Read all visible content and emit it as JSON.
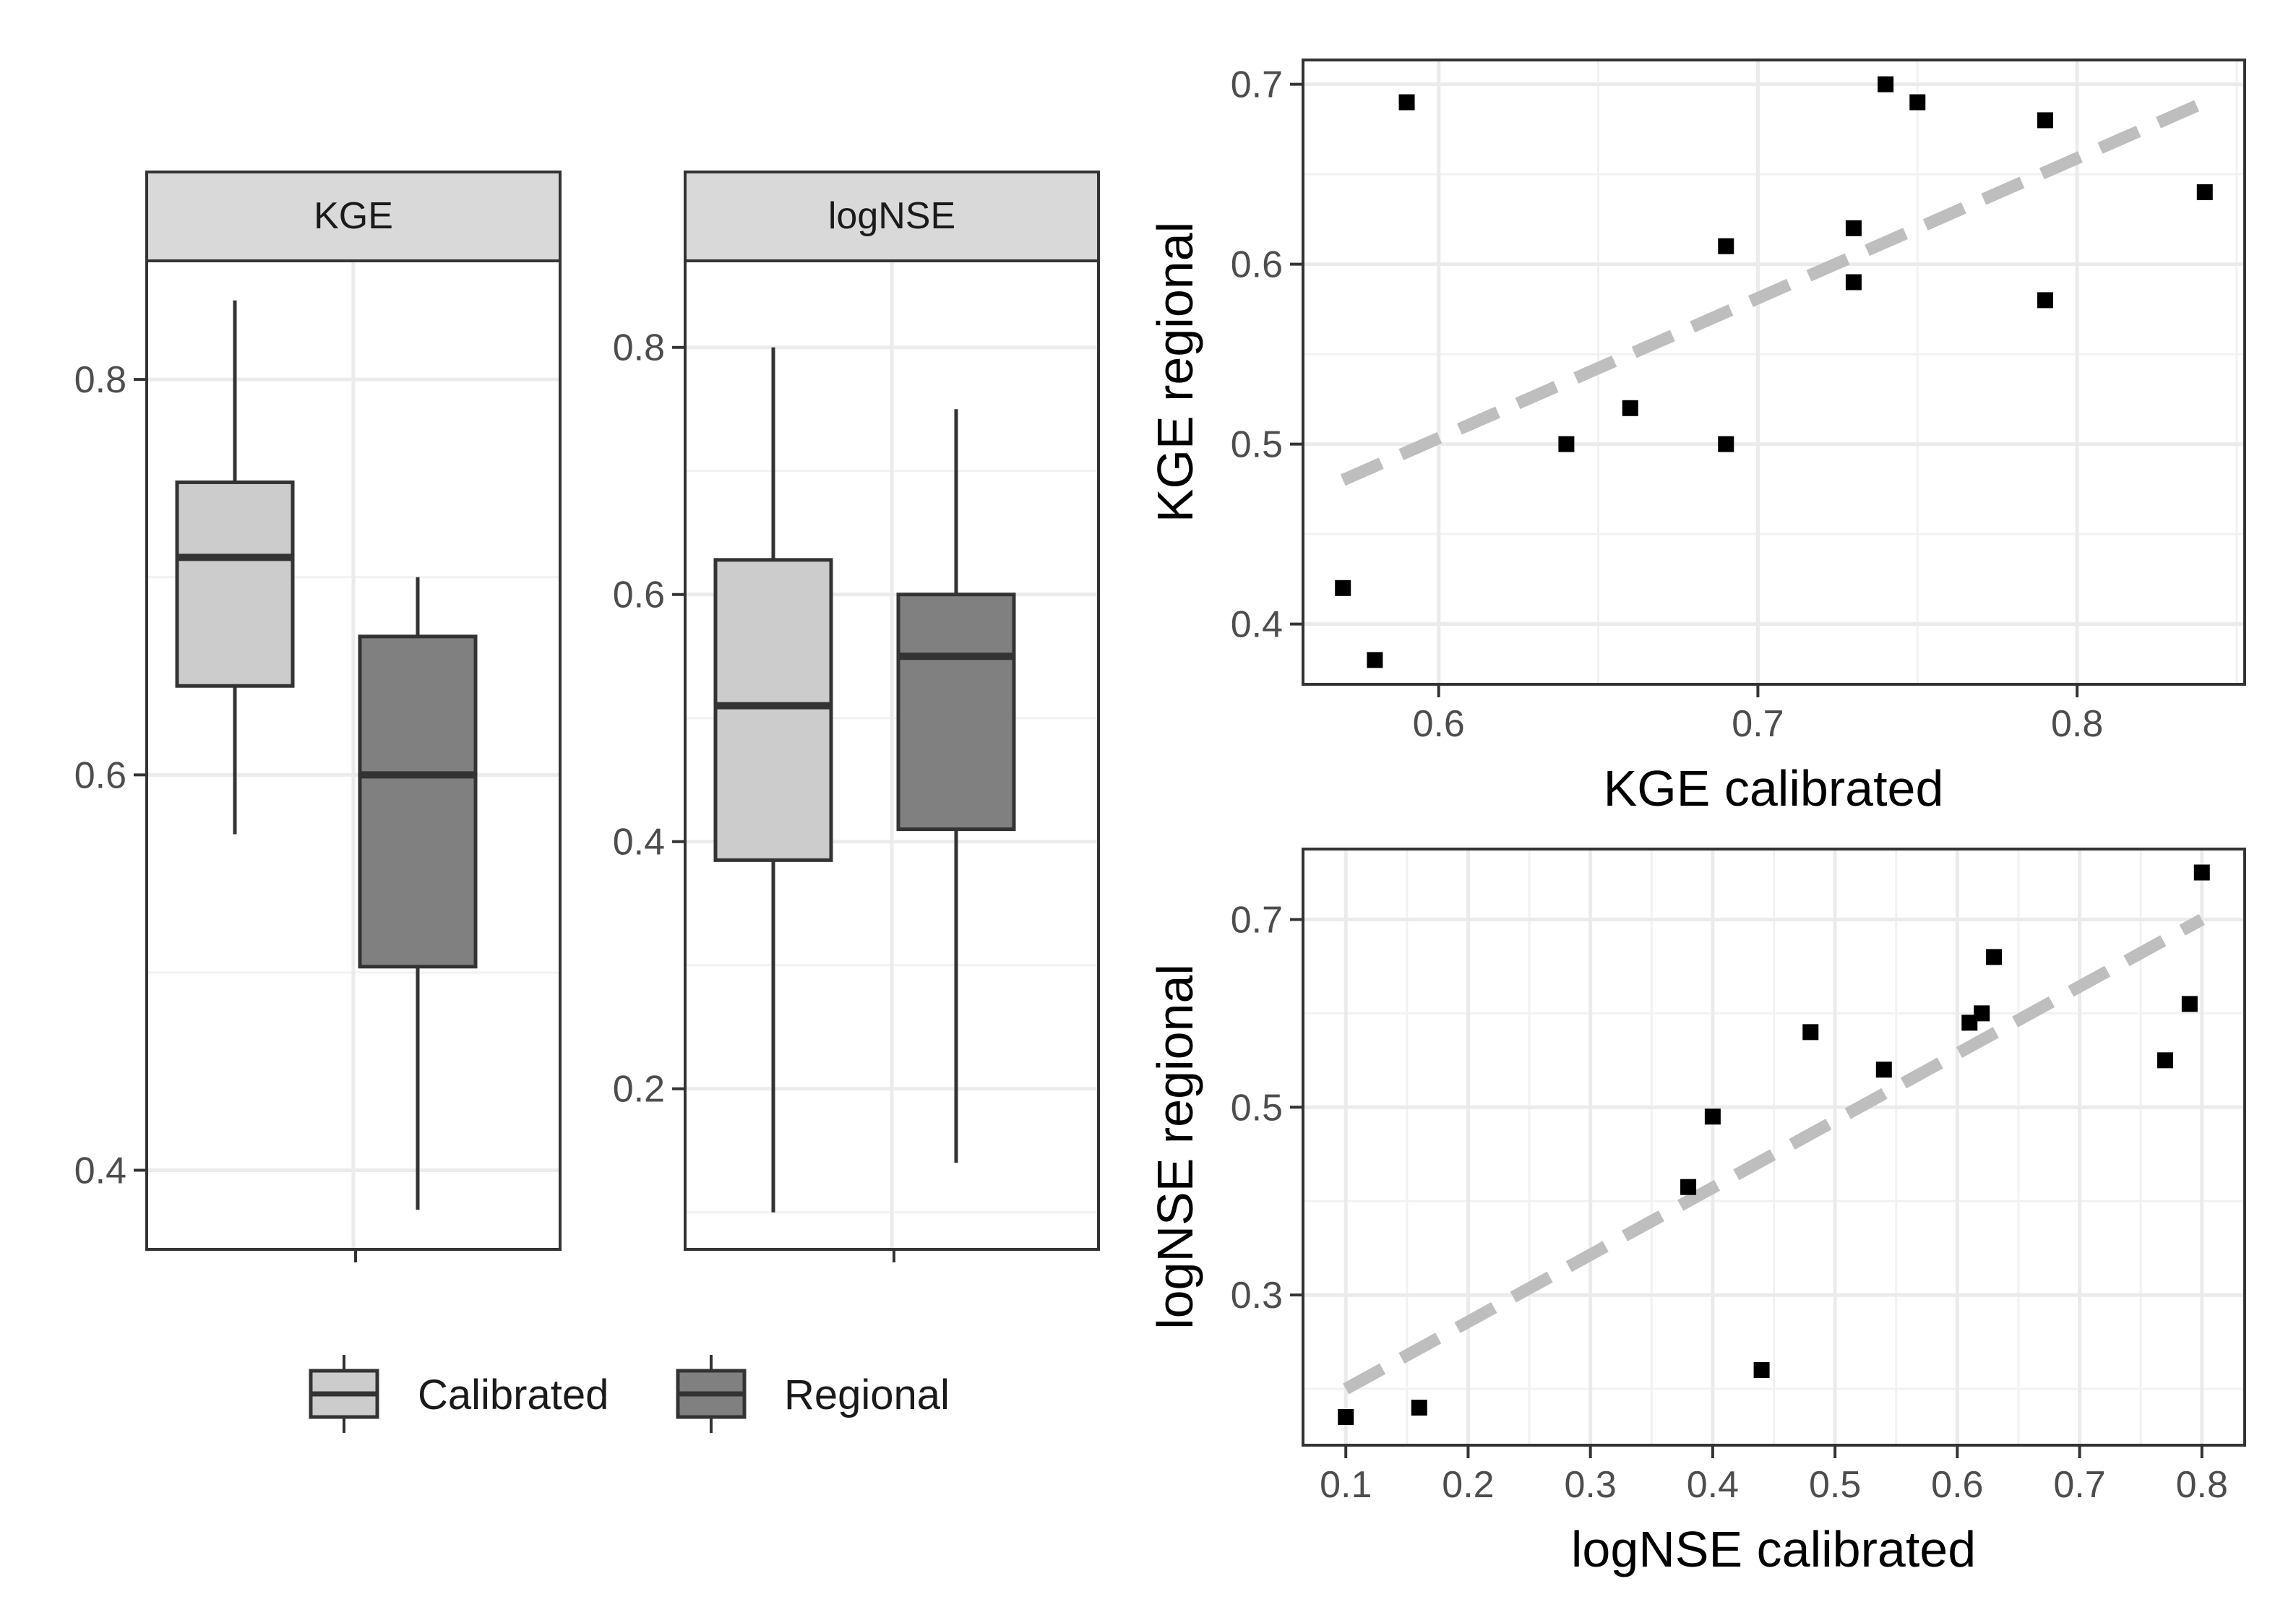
{
  "chart_data": [
    {
      "type": "boxplot",
      "panel": "KGE",
      "ylim": [
        0.36,
        0.86
      ],
      "yticks": [
        0.4,
        0.6,
        0.8
      ],
      "tick_labels": [
        "0.4",
        "0.6",
        "0.8"
      ],
      "groups": [
        {
          "name": "Calibrated",
          "whisker_low": 0.57,
          "q1": 0.645,
          "median": 0.71,
          "q3": 0.748,
          "whisker_high": 0.84
        },
        {
          "name": "Regional",
          "whisker_low": 0.38,
          "q1": 0.503,
          "median": 0.6,
          "q3": 0.67,
          "whisker_high": 0.7
        }
      ]
    },
    {
      "type": "boxplot",
      "panel": "logNSE",
      "ylim": [
        0.07,
        0.87
      ],
      "yticks": [
        0.2,
        0.4,
        0.6,
        0.8
      ],
      "tick_labels": [
        "0.2",
        "0.4",
        "0.6",
        "0.8"
      ],
      "groups": [
        {
          "name": "Calibrated",
          "whisker_low": 0.1,
          "q1": 0.385,
          "median": 0.51,
          "q3": 0.628,
          "whisker_high": 0.8
        },
        {
          "name": "Regional",
          "whisker_low": 0.14,
          "q1": 0.41,
          "median": 0.55,
          "q3": 0.6,
          "whisker_high": 0.75
        }
      ]
    },
    {
      "type": "scatter",
      "xlabel": "KGE calibrated",
      "ylabel": "KGE regional",
      "xlim": [
        0.5575,
        0.8525
      ],
      "ylim": [
        0.3665,
        0.7135
      ],
      "xticks": [
        0.6,
        0.7,
        0.8
      ],
      "xtick_labels": [
        "0.6",
        "0.7",
        "0.8"
      ],
      "yticks": [
        0.4,
        0.5,
        0.6,
        0.7
      ],
      "ytick_labels": [
        "0.4",
        "0.5",
        "0.6",
        "0.7"
      ],
      "points": [
        {
          "x": 0.57,
          "y": 0.42
        },
        {
          "x": 0.58,
          "y": 0.38
        },
        {
          "x": 0.59,
          "y": 0.69
        },
        {
          "x": 0.64,
          "y": 0.5
        },
        {
          "x": 0.66,
          "y": 0.52
        },
        {
          "x": 0.69,
          "y": 0.61
        },
        {
          "x": 0.69,
          "y": 0.5
        },
        {
          "x": 0.73,
          "y": 0.62
        },
        {
          "x": 0.73,
          "y": 0.59
        },
        {
          "x": 0.74,
          "y": 0.7
        },
        {
          "x": 0.75,
          "y": 0.69
        },
        {
          "x": 0.79,
          "y": 0.68
        },
        {
          "x": 0.79,
          "y": 0.58
        },
        {
          "x": 0.84,
          "y": 0.64
        }
      ],
      "fit_line": {
        "x": [
          0.57,
          0.84
        ],
        "y": [
          0.48,
          0.69
        ]
      }
    },
    {
      "type": "scatter",
      "xlabel": "logNSE calibrated",
      "ylabel": "logNSE regional",
      "xlim": [
        0.065,
        0.835
      ],
      "ylim": [
        0.14,
        0.775
      ],
      "xticks": [
        0.1,
        0.2,
        0.3,
        0.4,
        0.5,
        0.6,
        0.7,
        0.8
      ],
      "xtick_labels": [
        "0.1",
        "0.2",
        "0.3",
        "0.4",
        "0.5",
        "0.6",
        "0.7",
        "0.8"
      ],
      "yticks": [
        0.3,
        0.5,
        0.7
      ],
      "ytick_labels": [
        "0.3",
        "0.5",
        "0.7"
      ],
      "points": [
        {
          "x": 0.1,
          "y": 0.17
        },
        {
          "x": 0.16,
          "y": 0.18
        },
        {
          "x": 0.38,
          "y": 0.415
        },
        {
          "x": 0.4,
          "y": 0.49
        },
        {
          "x": 0.44,
          "y": 0.22
        },
        {
          "x": 0.48,
          "y": 0.58
        },
        {
          "x": 0.54,
          "y": 0.54
        },
        {
          "x": 0.61,
          "y": 0.59
        },
        {
          "x": 0.62,
          "y": 0.6
        },
        {
          "x": 0.63,
          "y": 0.66
        },
        {
          "x": 0.77,
          "y": 0.55
        },
        {
          "x": 0.79,
          "y": 0.61
        },
        {
          "x": 0.8,
          "y": 0.75
        }
      ],
      "fit_line": {
        "x": [
          0.1,
          0.8
        ],
        "y": [
          0.2,
          0.7
        ]
      }
    }
  ],
  "legend": {
    "items": [
      {
        "label": "Calibrated",
        "color": "#cccccc"
      },
      {
        "label": "Regional",
        "color": "#808080"
      }
    ]
  },
  "colors": {
    "calibrated": "#cccccc",
    "regional": "#808080",
    "fit": "#bebebe",
    "outline": "#333333"
  }
}
